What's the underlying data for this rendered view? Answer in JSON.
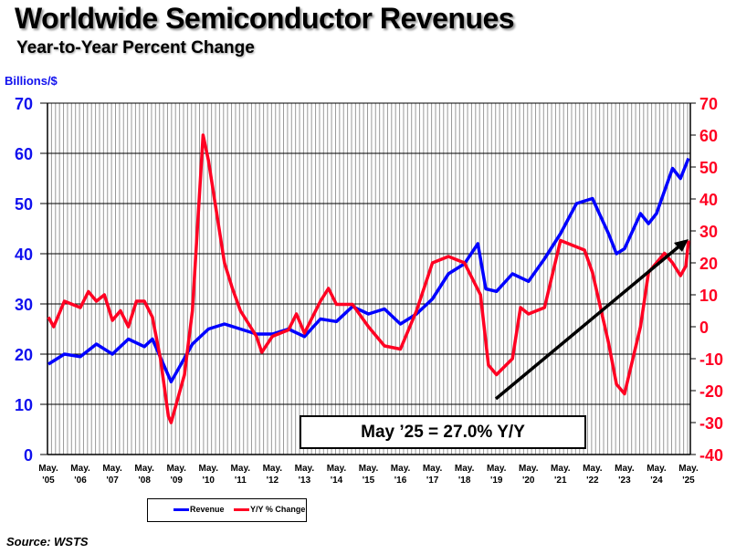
{
  "chart_data": {
    "type": "line",
    "title": "Worldwide Semiconductor Revenues",
    "subtitle": "Year-to-Year Percent Change",
    "ylabel_left": "Billions/$",
    "ylim_left": [
      0,
      70
    ],
    "ylim_right": [
      -40,
      70
    ],
    "yticks_left": [
      0,
      10,
      20,
      30,
      40,
      50,
      60,
      70
    ],
    "yticks_right": [
      -40,
      -30,
      -20,
      -10,
      0,
      10,
      20,
      30,
      40,
      50,
      60,
      70
    ],
    "xtick_labels": [
      [
        "May.",
        "'05"
      ],
      [
        "May.",
        "'06"
      ],
      [
        "May.",
        "'07"
      ],
      [
        "May.",
        "'08"
      ],
      [
        "May.",
        "'09"
      ],
      [
        "May.",
        "'10"
      ],
      [
        "May.",
        "'11"
      ],
      [
        "May.",
        "'12"
      ],
      [
        "May.",
        "'13"
      ],
      [
        "May.",
        "'14"
      ],
      [
        "May.",
        "'15"
      ],
      [
        "May.",
        "'16"
      ],
      [
        "May.",
        "'17"
      ],
      [
        "May.",
        "'18"
      ],
      [
        "May.",
        "'19"
      ],
      [
        "May.",
        "'20"
      ],
      [
        "May.",
        "'21"
      ],
      [
        "May.",
        "'22"
      ],
      [
        "May.",
        "'23"
      ],
      [
        "May.",
        "'24"
      ],
      [
        "May.",
        "'25"
      ]
    ],
    "grid": true,
    "legend_position": "bottom",
    "series": [
      {
        "name": "Revenue",
        "axis": "left",
        "color": "#0000ff",
        "x": [
          "2005-05",
          "2005-11",
          "2006-05",
          "2006-11",
          "2007-05",
          "2007-11",
          "2008-05",
          "2008-08",
          "2009-03",
          "2009-11",
          "2010-05",
          "2010-11",
          "2011-05",
          "2011-11",
          "2012-05",
          "2012-11",
          "2013-05",
          "2013-11",
          "2014-05",
          "2014-11",
          "2015-05",
          "2015-11",
          "2016-05",
          "2016-11",
          "2017-05",
          "2017-11",
          "2018-05",
          "2018-10",
          "2019-01",
          "2019-05",
          "2019-11",
          "2020-05",
          "2020-11",
          "2021-05",
          "2021-11",
          "2022-05",
          "2022-11",
          "2023-02",
          "2023-05",
          "2023-11",
          "2024-02",
          "2024-05",
          "2024-11",
          "2025-02",
          "2025-05"
        ],
        "values": [
          18,
          20,
          19.5,
          22,
          20,
          23,
          21.5,
          23,
          14.5,
          22,
          25,
          26,
          25,
          24,
          24,
          25,
          23.5,
          27,
          26.5,
          29.5,
          28,
          29,
          26,
          28,
          31,
          36,
          38,
          42,
          33,
          32.5,
          36,
          34.5,
          39,
          44,
          50,
          51,
          44,
          40,
          41,
          48,
          46,
          48,
          57,
          55,
          59
        ]
      },
      {
        "name": "Y/Y % Change",
        "axis": "right",
        "color": "#ff0022",
        "x": [
          "2005-05",
          "2005-07",
          "2005-11",
          "2006-05",
          "2006-08",
          "2006-11",
          "2007-02",
          "2007-05",
          "2007-08",
          "2007-11",
          "2008-02",
          "2008-05",
          "2008-08",
          "2008-11",
          "2009-02",
          "2009-03",
          "2009-08",
          "2009-11",
          "2010-03",
          "2010-05",
          "2010-11",
          "2011-02",
          "2011-05",
          "2011-11",
          "2012-01",
          "2012-05",
          "2012-11",
          "2013-02",
          "2013-05",
          "2013-11",
          "2014-02",
          "2014-05",
          "2014-11",
          "2015-05",
          "2015-11",
          "2016-05",
          "2016-11",
          "2017-05",
          "2017-11",
          "2018-05",
          "2018-11",
          "2019-02",
          "2019-05",
          "2019-11",
          "2020-02",
          "2020-05",
          "2020-11",
          "2021-05",
          "2021-11",
          "2022-02",
          "2022-05",
          "2022-11",
          "2023-02",
          "2023-05",
          "2023-11",
          "2024-02",
          "2024-05",
          "2024-08",
          "2024-11",
          "2025-02",
          "2025-04",
          "2025-05"
        ],
        "values": [
          3,
          0,
          8,
          6,
          11,
          8,
          10,
          2,
          5,
          0,
          8,
          8,
          3,
          -10,
          -28,
          -30,
          -15,
          5,
          60,
          52,
          20,
          12,
          5,
          -3,
          -8,
          -3,
          -1,
          4,
          -2,
          8,
          12,
          7,
          7,
          0,
          -6,
          -7,
          5,
          20,
          22,
          20,
          10,
          -12,
          -15,
          -10,
          6,
          4,
          6,
          27,
          25,
          24,
          17,
          -5,
          -18,
          -21,
          0,
          17,
          20,
          23,
          20,
          16,
          19,
          27
        ]
      }
    ],
    "annotation": "May ’25 = 27.0% Y/Y"
  },
  "source": "Source: WSTS",
  "colors": {
    "revenue": "#0000ff",
    "yoy": "#ff0022",
    "left_axis": "#1010ee",
    "right_axis": "#ff0022"
  }
}
